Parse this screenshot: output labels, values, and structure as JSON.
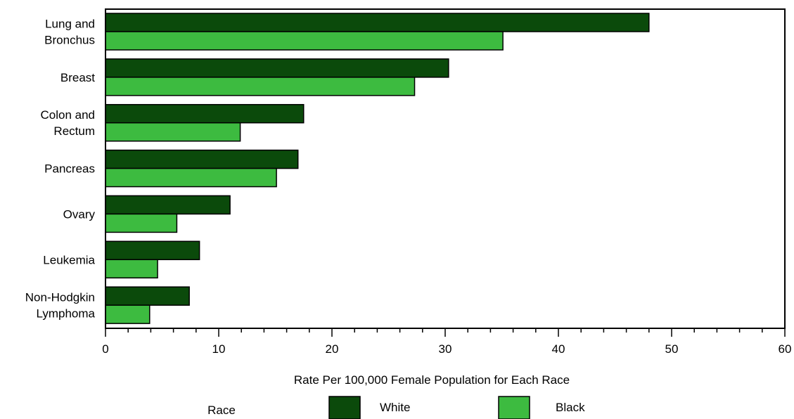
{
  "chart_data": {
    "type": "bar",
    "orientation": "horizontal",
    "title": "",
    "xlabel": "Rate Per 100,000 Female Population for Each Race",
    "ylabel": "",
    "xlim": [
      0,
      60
    ],
    "x_ticks": [
      "0",
      "10",
      "20",
      "30",
      "40",
      "50",
      "60"
    ],
    "grid": false,
    "categories": [
      [
        "Lung and",
        "Bronchus"
      ],
      [
        "Breast"
      ],
      [
        "Colon and",
        "Rectum"
      ],
      [
        "Pancreas"
      ],
      [
        "Ovary"
      ],
      [
        "Leukemia"
      ],
      [
        "Non-Hodgkin",
        "Lymphoma"
      ]
    ],
    "series": [
      {
        "name": "White",
        "color": "#0b4a0b",
        "values": [
          48.0,
          30.3,
          17.5,
          17.0,
          11.0,
          8.3,
          7.4
        ]
      },
      {
        "name": "Black",
        "color": "#3dbb40",
        "values": [
          35.1,
          27.3,
          11.9,
          15.1,
          6.3,
          4.6,
          3.9
        ]
      }
    ],
    "legend": {
      "title": "Race",
      "placement": "bottom"
    }
  }
}
